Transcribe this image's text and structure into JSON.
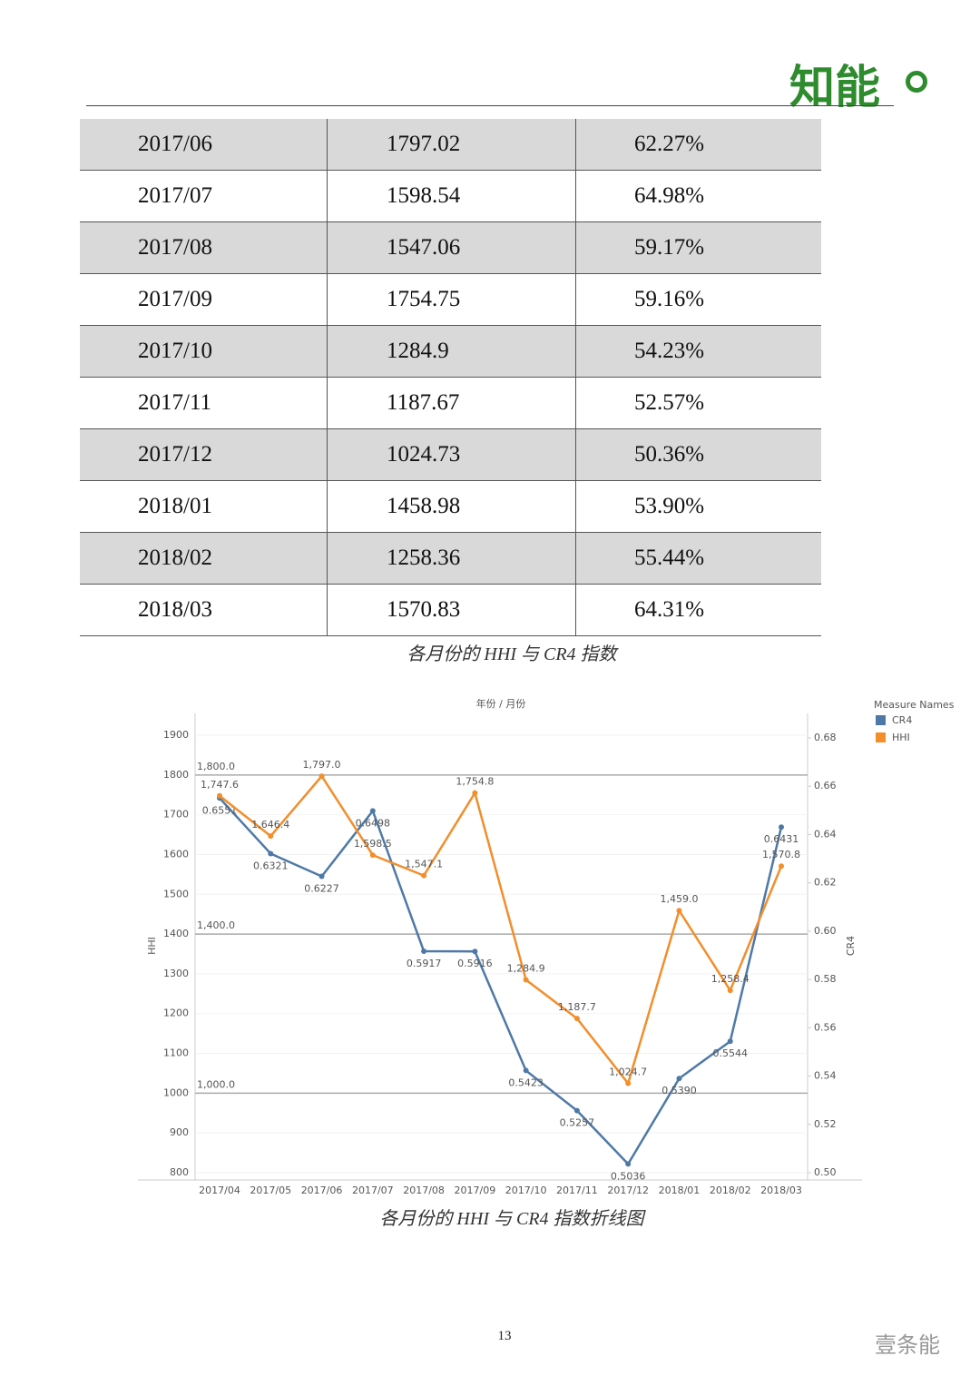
{
  "header": {
    "logo": "知能"
  },
  "table": {
    "rows": [
      [
        "2017/06",
        "1797.02",
        "62.27%"
      ],
      [
        "2017/07",
        "1598.54",
        "64.98%"
      ],
      [
        "2017/08",
        "1547.06",
        "59.17%"
      ],
      [
        "2017/09",
        "1754.75",
        "59.16%"
      ],
      [
        "2017/10",
        "1284.9",
        "54.23%"
      ],
      [
        "2017/11",
        "1187.67",
        "52.57%"
      ],
      [
        "2017/12",
        "1024.73",
        "50.36%"
      ],
      [
        "2018/01",
        "1458.98",
        "53.90%"
      ],
      [
        "2018/02",
        "1258.36",
        "55.44%"
      ],
      [
        "2018/03",
        "1570.83",
        "64.31%"
      ]
    ],
    "caption": "各月份的 HHI 与 CR4 指数"
  },
  "chart_data": {
    "type": "line",
    "title": "年份 / 月份",
    "y_label": "HHI",
    "y2_label": "CR4",
    "legend_title": "Measure Names",
    "categories": [
      "2017/04",
      "2017/05",
      "2017/06",
      "2017/07",
      "2017/08",
      "2017/09",
      "2017/10",
      "2017/11",
      "2017/12",
      "2018/01",
      "2018/02",
      "2018/03"
    ],
    "series": [
      {
        "name": "CR4",
        "color": "#4e79a7",
        "axis": "y2",
        "values": [
          0.6551,
          0.6321,
          0.6227,
          0.6498,
          0.5917,
          0.5916,
          0.5423,
          0.5257,
          0.5036,
          0.539,
          0.5544,
          0.6431
        ],
        "value_labels": [
          "0.6551",
          "0.6321",
          "0.6227",
          "0.6498",
          "0.5917",
          "0.5916",
          "0.5423",
          "0.5257",
          "0.5036",
          "0.5390",
          "0.5544",
          "0.6431"
        ]
      },
      {
        "name": "HHI",
        "color": "#f28e2b",
        "values": [
          1747.6,
          1646.4,
          1797.0,
          1598.5,
          1547.1,
          1754.8,
          1284.9,
          1187.7,
          1024.7,
          1459.0,
          1258.4,
          1570.8
        ],
        "value_labels": [
          "1,747.6",
          "1,646.4",
          "1,797.0",
          "1,598.5",
          "1,547.1",
          "1,754.8",
          "1,284.9",
          "1,187.7",
          "1,024.7",
          "1,459.0",
          "1,258.4",
          "1,570.8"
        ]
      }
    ],
    "ylim": [
      800,
      1900
    ],
    "yticks": [
      800,
      900,
      1000,
      1100,
      1200,
      1300,
      1400,
      1500,
      1600,
      1700,
      1800,
      1900
    ],
    "y2lim": [
      0.5,
      0.68
    ],
    "y2ticks": [
      {
        "value": 0.5,
        "label": "0.50"
      },
      {
        "value": 0.52,
        "label": "0.52"
      },
      {
        "value": 0.54,
        "label": "0.54"
      },
      {
        "value": 0.56,
        "label": "0.56"
      },
      {
        "value": 0.58,
        "label": "0.58"
      },
      {
        "value": 0.6,
        "label": "0.60"
      },
      {
        "value": 0.62,
        "label": "0.62"
      },
      {
        "value": 0.64,
        "label": "0.64"
      },
      {
        "value": 0.66,
        "label": "0.66"
      },
      {
        "value": 0.68,
        "label": "0.68"
      }
    ],
    "reference_lines": [
      {
        "value": 1800,
        "label": "1,800.0"
      },
      {
        "value": 1400,
        "label": "1,400.0"
      },
      {
        "value": 1000,
        "label": "1,000.0"
      }
    ]
  },
  "chart_caption": "各月份的 HHI 与 CR4 指数折线图",
  "footer": {
    "page_number": "13",
    "watermark": "壹条能"
  }
}
